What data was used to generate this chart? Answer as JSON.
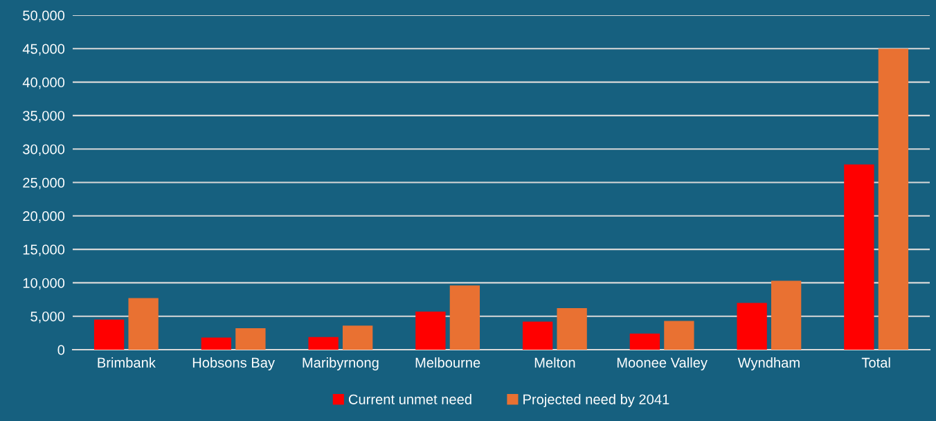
{
  "chart_data": {
    "type": "bar",
    "categories": [
      "Brimbank",
      "Hobsons Bay",
      "Maribyrnong",
      "Melbourne",
      "Melton",
      "Moonee Valley",
      "Wyndham",
      "Total"
    ],
    "series": [
      {
        "name": "Current unmet need",
        "color": "#ff0000",
        "values": [
          4500,
          1800,
          1900,
          5700,
          4200,
          2400,
          7000,
          27700
        ]
      },
      {
        "name": "Projected need by 2041",
        "color": "#e97132",
        "values": [
          7700,
          3200,
          3600,
          9600,
          6200,
          4300,
          10300,
          45000
        ]
      }
    ],
    "ylim": [
      0,
      50000
    ],
    "yticks": [
      {
        "value": 0,
        "label": "0"
      },
      {
        "value": 5000,
        "label": "5,000"
      },
      {
        "value": 10000,
        "label": "10,000"
      },
      {
        "value": 15000,
        "label": "15,000"
      },
      {
        "value": 20000,
        "label": "20,000"
      },
      {
        "value": 25000,
        "label": "25,000"
      },
      {
        "value": 30000,
        "label": "30,000"
      },
      {
        "value": 35000,
        "label": "35,000"
      },
      {
        "value": 40000,
        "label": "40,000"
      },
      {
        "value": 45000,
        "label": "45,000"
      },
      {
        "value": 50000,
        "label": "50,000"
      }
    ],
    "grid": "y",
    "legend": "bottom"
  }
}
